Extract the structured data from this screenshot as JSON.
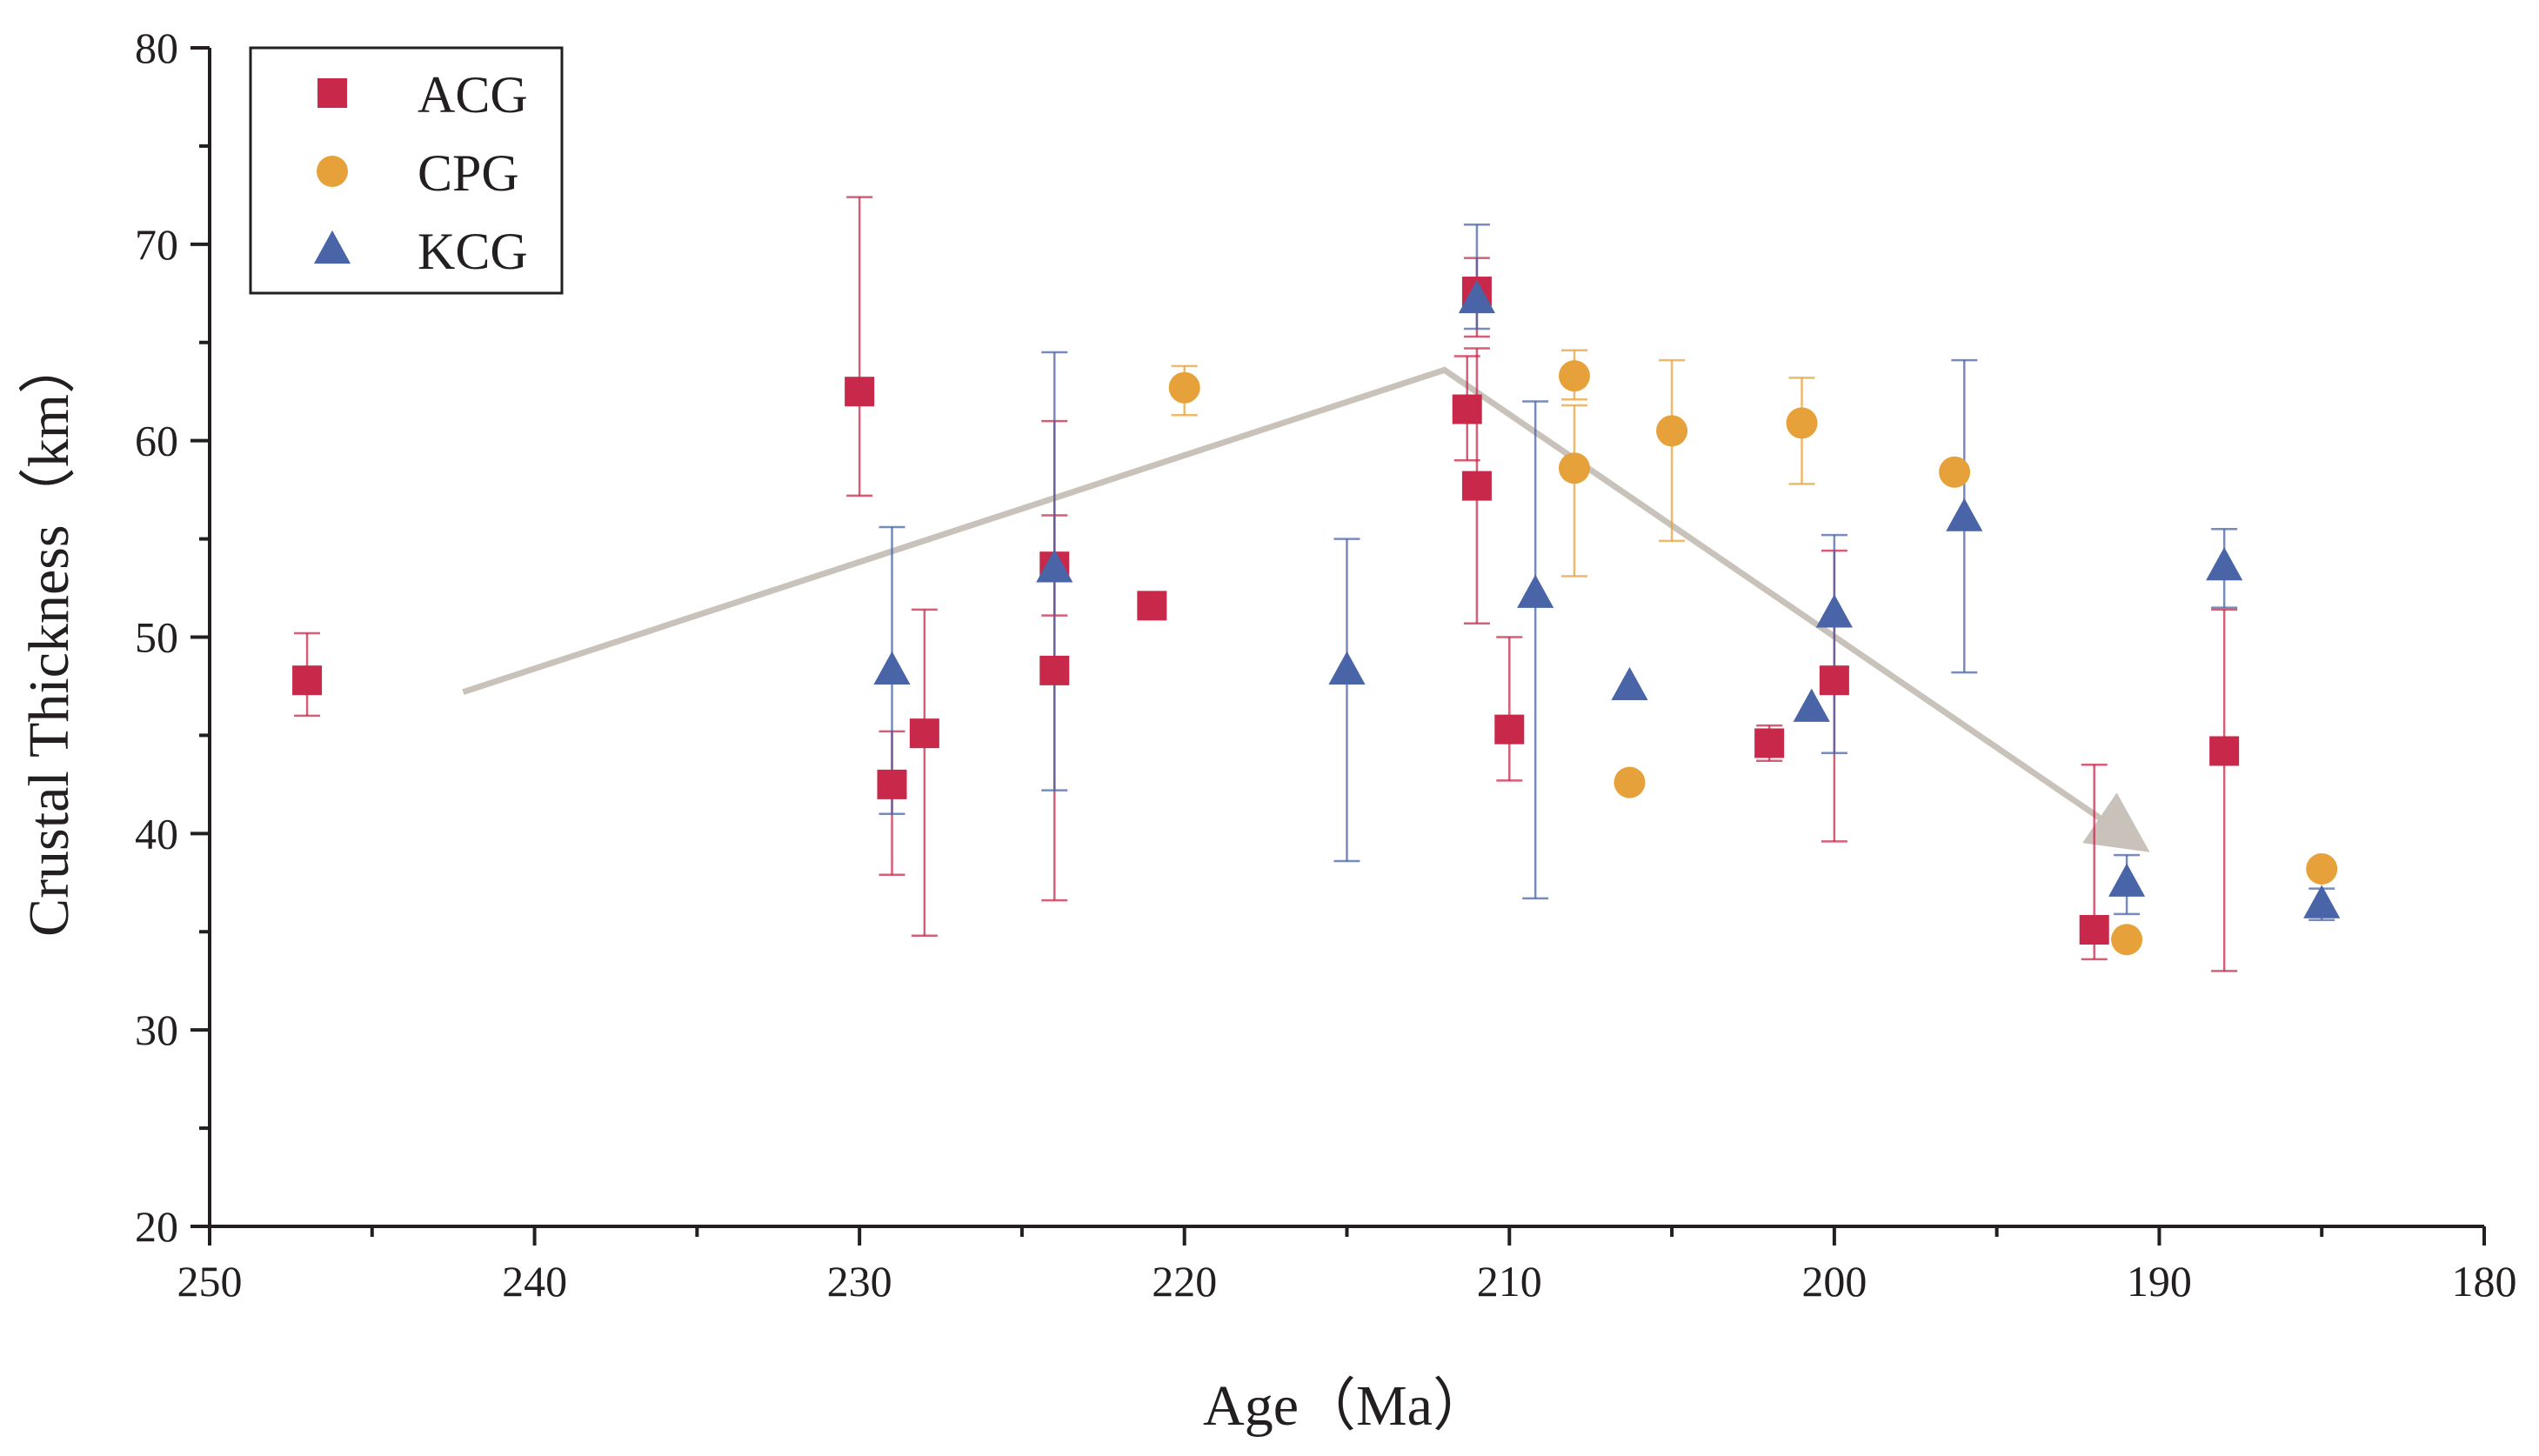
{
  "chart_data": {
    "type": "scatter",
    "title": "",
    "xlabel": "Age（Ma）",
    "ylabel": "Crustal Thickness（km）",
    "xlim": [
      250,
      180
    ],
    "ylim": [
      20,
      80
    ],
    "x_ticks": [
      250,
      240,
      230,
      220,
      210,
      200,
      190,
      180
    ],
    "y_ticks": [
      20,
      30,
      40,
      50,
      60,
      70,
      80
    ],
    "grid": false,
    "legend_position": "top-left",
    "series": [
      {
        "name": "ACG",
        "marker": "square",
        "color": "#c8284a",
        "points": [
          {
            "x": 247,
            "y": 47.8,
            "err_lo": 46.0,
            "err_hi": 50.2
          },
          {
            "x": 230,
            "y": 62.5,
            "err_lo": 57.2,
            "err_hi": 72.4
          },
          {
            "x": 229,
            "y": 42.5,
            "err_lo": 37.9,
            "err_hi": 45.2
          },
          {
            "x": 228,
            "y": 45.1,
            "err_lo": 34.8,
            "err_hi": 51.4
          },
          {
            "x": 224,
            "y": 53.6,
            "err_lo": 51.1,
            "err_hi": 56.2
          },
          {
            "x": 224,
            "y": 48.3,
            "err_lo": 36.6,
            "err_hi": 61.0
          },
          {
            "x": 221,
            "y": 51.6,
            "err_lo": 51.6,
            "err_hi": 51.6
          },
          {
            "x": 211.3,
            "y": 61.6,
            "err_lo": 59.0,
            "err_hi": 64.3
          },
          {
            "x": 211,
            "y": 67.6,
            "err_lo": 65.3,
            "err_hi": 69.3
          },
          {
            "x": 211,
            "y": 57.7,
            "err_lo": 50.7,
            "err_hi": 64.7
          },
          {
            "x": 210,
            "y": 45.3,
            "err_lo": 42.7,
            "err_hi": 50.0
          },
          {
            "x": 202,
            "y": 44.6,
            "err_lo": 43.7,
            "err_hi": 45.5
          },
          {
            "x": 200,
            "y": 47.8,
            "err_lo": 39.6,
            "err_hi": 54.4
          },
          {
            "x": 192,
            "y": 35.1,
            "err_lo": 33.6,
            "err_hi": 43.5
          },
          {
            "x": 188,
            "y": 44.2,
            "err_lo": 33.0,
            "err_hi": 51.4
          }
        ]
      },
      {
        "name": "CPG",
        "marker": "circle",
        "color": "#e7a13a",
        "points": [
          {
            "x": 220,
            "y": 62.7,
            "err_lo": 61.3,
            "err_hi": 63.8
          },
          {
            "x": 208,
            "y": 63.3,
            "err_lo": 62.1,
            "err_hi": 64.6
          },
          {
            "x": 208,
            "y": 58.6,
            "err_lo": 53.1,
            "err_hi": 61.8
          },
          {
            "x": 206.3,
            "y": 42.6,
            "err_lo": 42.6,
            "err_hi": 42.6
          },
          {
            "x": 205,
            "y": 60.5,
            "err_lo": 54.9,
            "err_hi": 64.1
          },
          {
            "x": 201,
            "y": 60.9,
            "err_lo": 57.8,
            "err_hi": 63.2
          },
          {
            "x": 196.3,
            "y": 58.4,
            "err_lo": 58.4,
            "err_hi": 58.4
          },
          {
            "x": 191,
            "y": 34.6,
            "err_lo": 34.6,
            "err_hi": 34.6
          },
          {
            "x": 185,
            "y": 38.2,
            "err_lo": 38.2,
            "err_hi": 38.2
          }
        ]
      },
      {
        "name": "KCG",
        "marker": "triangle",
        "color": "#4a65a7",
        "points": [
          {
            "x": 229,
            "y": 48.3,
            "err_lo": 41.0,
            "err_hi": 55.6
          },
          {
            "x": 224,
            "y": 53.5,
            "err_lo": 42.2,
            "err_hi": 64.5
          },
          {
            "x": 215,
            "y": 48.3,
            "err_lo": 38.6,
            "err_hi": 55.0
          },
          {
            "x": 211,
            "y": 67.2,
            "err_lo": 65.7,
            "err_hi": 71.0
          },
          {
            "x": 209.2,
            "y": 52.2,
            "err_lo": 36.7,
            "err_hi": 62.0
          },
          {
            "x": 206.3,
            "y": 47.5,
            "err_lo": 47.5,
            "err_hi": 47.5
          },
          {
            "x": 200.7,
            "y": 46.4,
            "err_lo": 46.4,
            "err_hi": 46.4
          },
          {
            "x": 200,
            "y": 51.2,
            "err_lo": 44.1,
            "err_hi": 55.2
          },
          {
            "x": 196,
            "y": 56.1,
            "err_lo": 48.2,
            "err_hi": 64.1
          },
          {
            "x": 191,
            "y": 37.5,
            "err_lo": 35.9,
            "err_hi": 38.9
          },
          {
            "x": 188,
            "y": 53.6,
            "err_lo": 51.5,
            "err_hi": 55.5
          },
          {
            "x": 185,
            "y": 36.4,
            "err_lo": 35.6,
            "err_hi": 37.2
          }
        ]
      }
    ],
    "trend_arrow": {
      "color": "#c8c2bb",
      "points": [
        {
          "x": 242.2,
          "y": 47.2
        },
        {
          "x": 212,
          "y": 63.6
        },
        {
          "x": 190.6,
          "y": 39.4
        }
      ]
    }
  }
}
